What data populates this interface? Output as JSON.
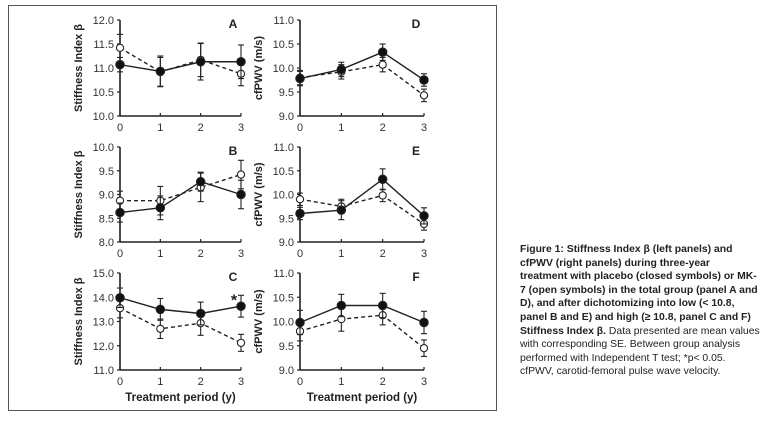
{
  "caption": {
    "bold": "Figure 1: Stiffness Index β (left panels) and cfPWV (right panels) during three-year treatment with placebo (closed symbols) or MK-7 (open symbols) in the total group (panel A and D), and after dichotomizing into low (< 10.8, panel B and E) and high (≥ 10.8, panel C and F) Stiffness Index β.",
    "normal": "Data presented are mean values with corresponding SE. Between group analysis performed with Independent T test; *p< 0.05. cfPWV, carotid-femoral pulse wave velocity."
  },
  "chart_data": [
    {
      "type": "line",
      "panel": "A",
      "ylabel": "Stiffness Index β",
      "xlabel": "",
      "x": [
        0,
        1,
        2,
        3
      ],
      "ylim": [
        10.0,
        12.0
      ],
      "yticks": [
        "10.0",
        "10.5",
        "11.0",
        "11.5",
        "12.0"
      ],
      "series": [
        {
          "name": "Placebo (closed symbols)",
          "style": "solid",
          "marker": "closed",
          "values": [
            11.07,
            10.93,
            11.13,
            11.13
          ],
          "se": [
            0.15,
            0.32,
            0.38,
            0.35
          ]
        },
        {
          "name": "MK-7 (open symbols)",
          "style": "dashed",
          "marker": "open",
          "values": [
            11.42,
            10.92,
            11.17,
            10.88
          ],
          "se": [
            0.28,
            0.3,
            0.35,
            0.25
          ]
        }
      ],
      "annotations": []
    },
    {
      "type": "line",
      "panel": "D",
      "ylabel": "cfPWV (m/s)",
      "xlabel": "",
      "x": [
        0,
        1,
        2,
        3
      ],
      "ylim": [
        9.0,
        11.0
      ],
      "yticks": [
        "9.0",
        "9.5",
        "10.0",
        "10.5",
        "11.0"
      ],
      "series": [
        {
          "name": "Placebo (closed symbols)",
          "style": "solid",
          "marker": "closed",
          "values": [
            9.78,
            9.97,
            10.33,
            9.75
          ],
          "se": [
            0.15,
            0.15,
            0.17,
            0.13
          ]
        },
        {
          "name": "MK-7 (open symbols)",
          "style": "dashed",
          "marker": "open",
          "values": [
            9.8,
            9.92,
            10.07,
            9.43
          ],
          "se": [
            0.15,
            0.15,
            0.15,
            0.13
          ]
        }
      ],
      "annotations": []
    },
    {
      "type": "line",
      "panel": "B",
      "ylabel": "Stiffness Index β",
      "xlabel": "",
      "x": [
        0,
        1,
        2,
        3
      ],
      "ylim": [
        8.0,
        10.0
      ],
      "yticks": [
        "8.0",
        "8.5",
        "9.0",
        "9.5",
        "10.0"
      ],
      "series": [
        {
          "name": "Placebo (closed symbols)",
          "style": "solid",
          "marker": "closed",
          "values": [
            8.62,
            8.72,
            9.27,
            9.0
          ],
          "se": [
            0.2,
            0.25,
            0.2,
            0.3
          ]
        },
        {
          "name": "MK-7 (open symbols)",
          "style": "dashed",
          "marker": "open",
          "values": [
            8.87,
            8.87,
            9.15,
            9.42
          ],
          "se": [
            0.2,
            0.3,
            0.3,
            0.3
          ]
        }
      ],
      "annotations": []
    },
    {
      "type": "line",
      "panel": "E",
      "ylabel": "cfPWV (m/s)",
      "xlabel": "",
      "x": [
        0,
        1,
        2,
        3
      ],
      "ylim": [
        9.0,
        11.0
      ],
      "yticks": [
        "9.0",
        "9.5",
        "10.0",
        "10.5",
        "11.0"
      ],
      "series": [
        {
          "name": "Placebo (closed symbols)",
          "style": "solid",
          "marker": "closed",
          "values": [
            9.6,
            9.67,
            10.32,
            9.55
          ],
          "se": [
            0.13,
            0.2,
            0.22,
            0.17
          ]
        },
        {
          "name": "MK-7 (open symbols)",
          "style": "dashed",
          "marker": "open",
          "values": [
            9.9,
            9.75,
            9.98,
            9.38
          ],
          "se": [
            0.13,
            0.15,
            0.13,
            0.13
          ]
        }
      ],
      "annotations": []
    },
    {
      "type": "line",
      "panel": "C",
      "ylabel": "Stiffness Index β",
      "xlabel": "Treatment period (y)",
      "x": [
        0,
        1,
        2,
        3
      ],
      "ylim": [
        11.0,
        15.0
      ],
      "yticks": [
        "11.0",
        "12.0",
        "13.0",
        "14.0",
        "15.0"
      ],
      "series": [
        {
          "name": "Placebo (closed symbols)",
          "style": "solid",
          "marker": "closed",
          "values": [
            13.98,
            13.5,
            13.33,
            13.63
          ],
          "se": [
            0.4,
            0.45,
            0.47,
            0.45
          ]
        },
        {
          "name": "MK-7 (open symbols)",
          "style": "dashed",
          "marker": "open",
          "values": [
            13.55,
            12.7,
            12.93,
            12.12
          ],
          "se": [
            0.4,
            0.4,
            0.5,
            0.35
          ]
        }
      ],
      "annotations": [
        {
          "text": "*",
          "x": 3,
          "meaning": "p< 0.05"
        }
      ]
    },
    {
      "type": "line",
      "panel": "F",
      "ylabel": "cfPWV (m/s)",
      "xlabel": "Treatment period (y)",
      "x": [
        0,
        1,
        2,
        3
      ],
      "ylim": [
        9.0,
        11.0
      ],
      "yticks": [
        "9.0",
        "9.5",
        "10.0",
        "10.5",
        "11.0"
      ],
      "series": [
        {
          "name": "Placebo (closed symbols)",
          "style": "solid",
          "marker": "closed",
          "values": [
            9.98,
            10.33,
            10.33,
            9.98
          ],
          "se": [
            0.25,
            0.23,
            0.25,
            0.23
          ]
        },
        {
          "name": "MK-7 (open symbols)",
          "style": "dashed",
          "marker": "open",
          "values": [
            9.8,
            10.05,
            10.13,
            9.45
          ],
          "se": [
            0.2,
            0.25,
            0.2,
            0.17
          ]
        }
      ],
      "annotations": []
    }
  ]
}
